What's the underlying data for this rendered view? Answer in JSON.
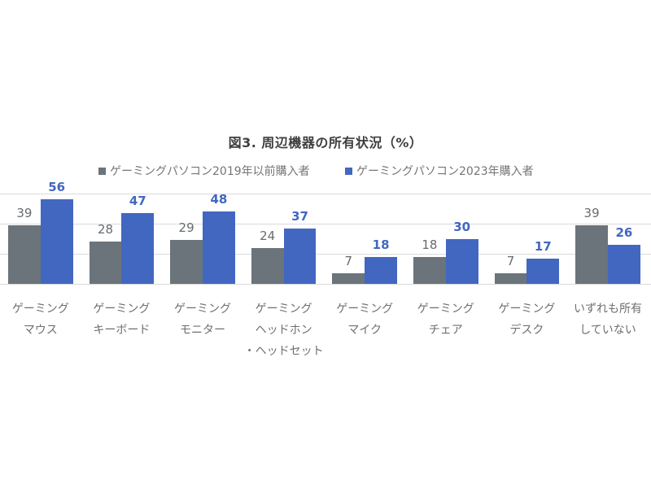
{
  "chart_data": {
    "type": "bar",
    "title": "図3. 周辺機器の所有状況（%）",
    "xlabel": "",
    "ylabel": "",
    "ylim": [
      0,
      60
    ],
    "grid": true,
    "gridlines": [
      20,
      40,
      60
    ],
    "legend_position": "top",
    "categories": [
      [
        "ゲーミング",
        "マウス"
      ],
      [
        "ゲーミング",
        "キーボード"
      ],
      [
        "ゲーミング",
        "モニター"
      ],
      [
        "ゲーミング",
        "ヘッドホン",
        "・ヘッドセット"
      ],
      [
        "ゲーミング",
        "マイク"
      ],
      [
        "ゲーミング",
        "チェア"
      ],
      [
        "ゲーミング",
        "デスク"
      ],
      [
        "いずれも所有",
        "していない"
      ]
    ],
    "series": [
      {
        "name": "ゲーミングパソコン2019年以前購入者",
        "color": "#6b747a",
        "values": [
          39,
          28,
          29,
          24,
          7,
          18,
          7,
          39
        ]
      },
      {
        "name": "ゲーミングパソコン2023年購入者",
        "color": "#4267c1",
        "values": [
          56,
          47,
          48,
          37,
          18,
          30,
          17,
          26
        ]
      }
    ]
  },
  "title": {
    "prefix": "図3.",
    "text": "周辺機器の所有状況（%）"
  },
  "legend": [
    {
      "marker": "■",
      "label": "ゲーミングパソコン2019年以前購入者",
      "color": "#6b747a"
    },
    {
      "marker": "■",
      "label": "ゲーミングパソコン2023年購入者",
      "color": "#4267c1"
    }
  ]
}
